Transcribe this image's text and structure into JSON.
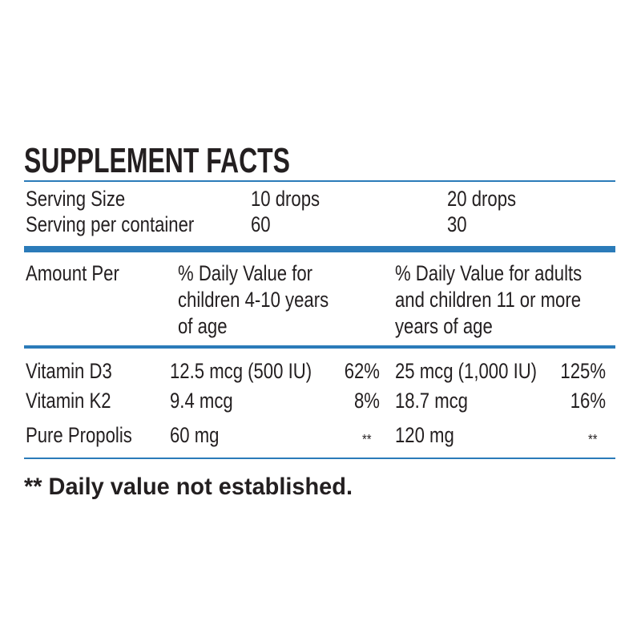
{
  "title": "SUPPLEMENT FACTS",
  "serving": {
    "rows": [
      [
        "Serving Size",
        "10 drops",
        "20 drops"
      ],
      [
        "Serving per container",
        "60",
        "30"
      ]
    ]
  },
  "header": [
    [
      "Amount Per"
    ],
    [
      "% Daily Value for",
      "children 4-10 years",
      "of age"
    ],
    [
      "% Daily Value for adults",
      "and children 11 or more",
      "years of age"
    ]
  ],
  "table": {
    "rows": [
      [
        "Vitamin D3",
        "12.5 mcg (500 IU)",
        "62%",
        "25 mcg (1,000 IU)",
        "125%"
      ],
      [
        "Vitamin K2",
        "9.4 mcg",
        "8%",
        "18.7 mcg",
        "16%"
      ],
      [
        "Pure Propolis",
        "60 mg",
        "**",
        "120 mg",
        "**"
      ]
    ]
  },
  "footnote": "** Daily value not established."
}
